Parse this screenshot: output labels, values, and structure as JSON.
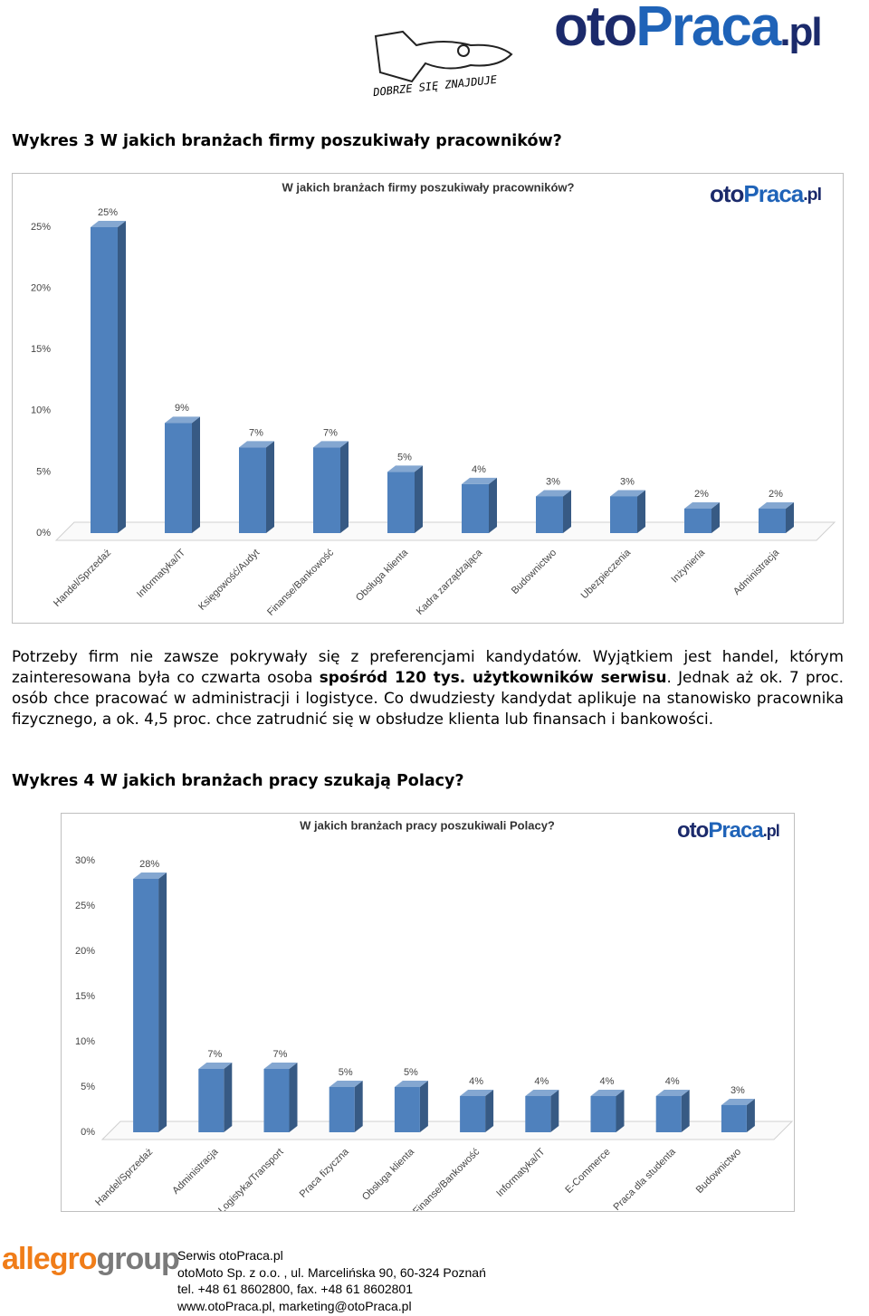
{
  "header": {
    "logo": [
      "oto",
      "Praca",
      ".pl"
    ],
    "slogan": "DOBRZE SIĘ ZNAJDUJE"
  },
  "heading_1": "Wykres 3 W jakich branżach firmy poszukiwały pracowników?",
  "paragraph": [
    {
      "text": "Potrzeby firm nie zawsze pokrywały się z preferencjami kandydatów. Wyjątkiem jest handel, którym zainteresowana była co czwarta osoba ",
      "bold": false
    },
    {
      "text": "spośród 120 tys. użytkowników serwisu",
      "bold": true
    },
    {
      "text": ". Jednak aż ok. 7 proc. osób chce pracować w administracji i logistyce. Co dwudziesty kandydat aplikuje na stanowisko pracownika fizycznego, a ok. 4,5 proc. chce zatrudnić się w obsłudze klienta lub finansach i bankowości.",
      "bold": false
    }
  ],
  "heading_2": "Wykres 4 W jakich branżach pracy szukają Polacy?",
  "chart_data": [
    {
      "type": "bar",
      "title": "W jakich branżach firmy poszukiwały pracowników?",
      "logo": [
        "oto",
        "Praca",
        ".pl"
      ],
      "categories": [
        "Handel/Sprzedaż",
        "Informatyka/IT",
        "Księgowość/Audyt",
        "Finanse/Bankowość",
        "Obsługa klienta",
        "Kadra zarządzająca",
        "Budownictwo",
        "Ubezpieczenia",
        "Inżynieria",
        "Administracja"
      ],
      "values": [
        25,
        9,
        7,
        7,
        5,
        4,
        3,
        3,
        2,
        2
      ],
      "value_labels": [
        "25%",
        "9%",
        "7%",
        "7%",
        "5%",
        "4%",
        "3%",
        "3%",
        "2%",
        "2%"
      ],
      "color": "#4f81bd",
      "ylim": [
        0,
        25
      ],
      "yticks": [
        {
          "value": 0,
          "label": "0%"
        },
        {
          "value": 5,
          "label": "5%"
        },
        {
          "value": 10,
          "label": "10%"
        },
        {
          "value": 15,
          "label": "15%"
        },
        {
          "value": 20,
          "label": "20%"
        },
        {
          "value": 25,
          "label": "25%"
        }
      ],
      "grid": false
    },
    {
      "type": "bar",
      "title": "W jakich branżach pracy poszukiwali Polacy?",
      "logo": [
        "oto",
        "Praca",
        ".pl"
      ],
      "categories": [
        "Handel/Sprzedaż",
        "Administracja",
        "Logistyka/Transport",
        "Praca fizyczna",
        "Obsługa klienta",
        "Finanse/Bankowość",
        "Informatyka/IT",
        "E-Commerce",
        "Praca dla studenta",
        "Budownictwo"
      ],
      "values": [
        28,
        7,
        7,
        5,
        5,
        4,
        4,
        4,
        4,
        3
      ],
      "value_labels": [
        "28%",
        "7%",
        "7%",
        "5%",
        "5%",
        "4%",
        "4%",
        "4%",
        "4%",
        "3%"
      ],
      "color": "#4f81bd",
      "ylim": [
        0,
        30
      ],
      "yticks": [
        {
          "value": 0,
          "label": "0%"
        },
        {
          "value": 5,
          "label": "5%"
        },
        {
          "value": 10,
          "label": "10%"
        },
        {
          "value": 15,
          "label": "15%"
        },
        {
          "value": 20,
          "label": "20%"
        },
        {
          "value": 25,
          "label": "25%"
        },
        {
          "value": 30,
          "label": "30%"
        }
      ],
      "grid": false
    }
  ],
  "footer": {
    "logo": [
      "allegro",
      "group"
    ],
    "lines": [
      "Serwis otoPraca.pl",
      "otoMoto Sp. z o.o. , ul. Marcelińska 90, 60-324 Poznań",
      "tel. +48 61 8602800, fax. +48 61 8602801",
      "www.otoPraca.pl, marketing@otoPraca.pl"
    ]
  }
}
